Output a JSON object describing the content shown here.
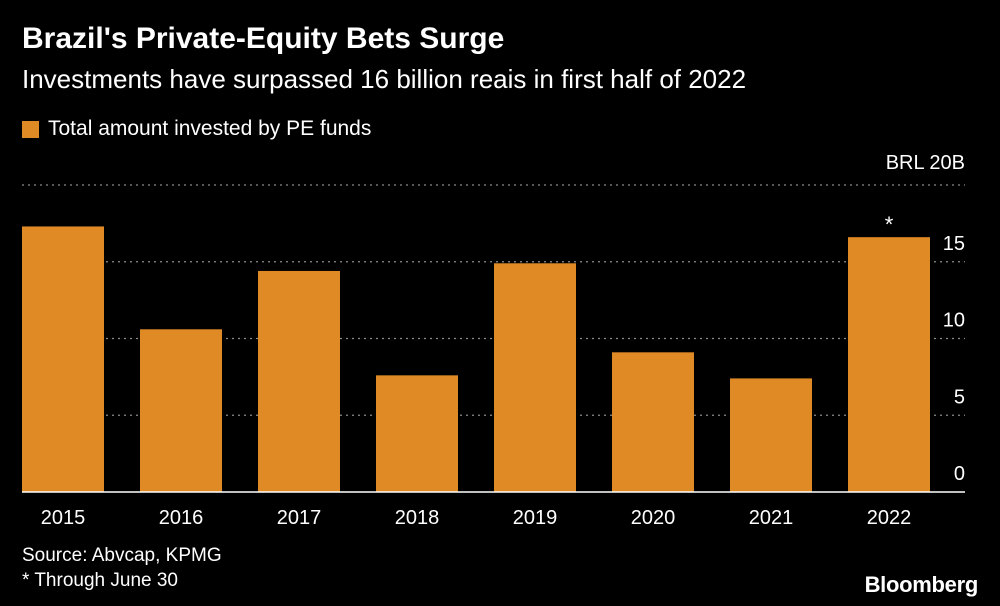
{
  "header": {
    "title": "Brazil's Private-Equity Bets Surge",
    "subtitle": "Investments have surpassed 16 billion reais in first half of 2022"
  },
  "legend": {
    "label": "Total amount invested by PE funds"
  },
  "colors": {
    "background": "#000000",
    "bar": "#E08A25",
    "grid": "#8a8a8a",
    "text": "#ffffff"
  },
  "chart_data": {
    "type": "bar",
    "categories": [
      "2015",
      "2016",
      "2017",
      "2018",
      "2019",
      "2020",
      "2021",
      "2022"
    ],
    "series": [
      {
        "name": "Total amount invested by PE funds",
        "values": [
          17.3,
          10.6,
          14.4,
          7.6,
          14.9,
          9.1,
          7.4,
          16.6
        ]
      }
    ],
    "annotations": [
      {
        "category": "2022",
        "text": "*"
      }
    ],
    "ylim": [
      0,
      20
    ],
    "yticks": [
      0,
      5,
      10,
      15,
      20
    ],
    "ytick_labels": [
      "0",
      "5",
      "10",
      "15",
      "BRL  20B"
    ],
    "y_axis_side": "right",
    "grid": true,
    "legend_position": "top-left"
  },
  "footer": {
    "source": "Source: Abvcap, KPMG",
    "note": "* Through June 30",
    "brand": "Bloomberg"
  }
}
